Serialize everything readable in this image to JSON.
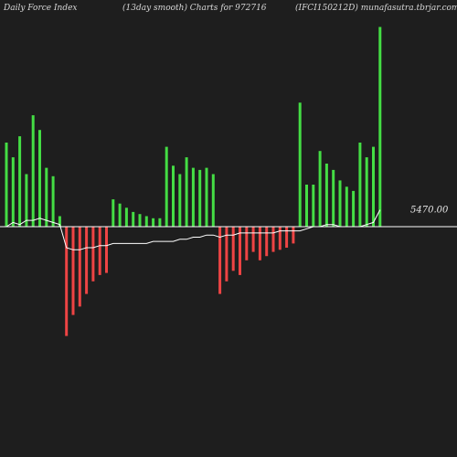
{
  "header": {
    "left": "Daily Force  Index",
    "center": "(13day smooth) Charts for 972716",
    "right": "(IFCI150212D) munafasutra.tbrjar.com"
  },
  "chart_data": {
    "type": "bar",
    "title": "Daily Force  Index",
    "subtitle": "(13day smooth) Charts for 972716",
    "source": "(IFCI150212D) munafasutra.tbrjar.com",
    "value_label": "5470.00",
    "ylim": [
      -100,
      100
    ],
    "zero_level": 0,
    "colors": {
      "positive": "#44dd44",
      "negative": "#ee4444",
      "line": "#ffffff",
      "baseline": "#ffffff"
    },
    "bars": [
      {
        "x": 0,
        "v": 40
      },
      {
        "x": 1,
        "v": 33
      },
      {
        "x": 2,
        "v": 43
      },
      {
        "x": 3,
        "v": 25
      },
      {
        "x": 4,
        "v": 53
      },
      {
        "x": 5,
        "v": 46
      },
      {
        "x": 6,
        "v": 28
      },
      {
        "x": 7,
        "v": 24
      },
      {
        "x": 8,
        "v": 5
      },
      {
        "x": 9,
        "v": -52
      },
      {
        "x": 10,
        "v": -42
      },
      {
        "x": 11,
        "v": -38
      },
      {
        "x": 12,
        "v": -32
      },
      {
        "x": 13,
        "v": -26
      },
      {
        "x": 14,
        "v": -23
      },
      {
        "x": 15,
        "v": -22
      },
      {
        "x": 16,
        "v": 13
      },
      {
        "x": 17,
        "v": 11
      },
      {
        "x": 18,
        "v": 9
      },
      {
        "x": 19,
        "v": 7
      },
      {
        "x": 20,
        "v": 6
      },
      {
        "x": 21,
        "v": 5
      },
      {
        "x": 22,
        "v": 4
      },
      {
        "x": 23,
        "v": 4
      },
      {
        "x": 24,
        "v": 38
      },
      {
        "x": 25,
        "v": 29
      },
      {
        "x": 26,
        "v": 25
      },
      {
        "x": 27,
        "v": 33
      },
      {
        "x": 28,
        "v": 28
      },
      {
        "x": 29,
        "v": 27
      },
      {
        "x": 30,
        "v": 28
      },
      {
        "x": 31,
        "v": 25
      },
      {
        "x": 32,
        "v": -32
      },
      {
        "x": 33,
        "v": -26
      },
      {
        "x": 34,
        "v": -21
      },
      {
        "x": 35,
        "v": -23
      },
      {
        "x": 36,
        "v": -16
      },
      {
        "x": 37,
        "v": -12
      },
      {
        "x": 38,
        "v": -16
      },
      {
        "x": 39,
        "v": -14
      },
      {
        "x": 40,
        "v": -12
      },
      {
        "x": 41,
        "v": -11
      },
      {
        "x": 42,
        "v": -10
      },
      {
        "x": 43,
        "v": -8
      },
      {
        "x": 44,
        "v": 59
      },
      {
        "x": 45,
        "v": 20
      },
      {
        "x": 46,
        "v": 20
      },
      {
        "x": 47,
        "v": 36
      },
      {
        "x": 48,
        "v": 30
      },
      {
        "x": 49,
        "v": 27
      },
      {
        "x": 50,
        "v": 22
      },
      {
        "x": 51,
        "v": 19
      },
      {
        "x": 52,
        "v": 17
      },
      {
        "x": 53,
        "v": 40
      },
      {
        "x": 54,
        "v": 33
      },
      {
        "x": 55,
        "v": 38
      },
      {
        "x": 56,
        "v": 95
      }
    ],
    "price_line": [
      0,
      2,
      1,
      3,
      3,
      4,
      3,
      2,
      1,
      -10,
      -11,
      -11,
      -10,
      -10,
      -9,
      -9,
      -8,
      -8,
      -8,
      -8,
      -8,
      -8,
      -7,
      -7,
      -7,
      -7,
      -6,
      -6,
      -5,
      -5,
      -4,
      -4,
      -5,
      -4,
      -4,
      -3,
      -3,
      -3,
      -3,
      -3,
      -3,
      -2,
      -2,
      -2,
      -2,
      -1,
      0,
      0,
      1,
      1,
      0,
      0,
      0,
      0,
      1,
      2,
      8
    ]
  }
}
